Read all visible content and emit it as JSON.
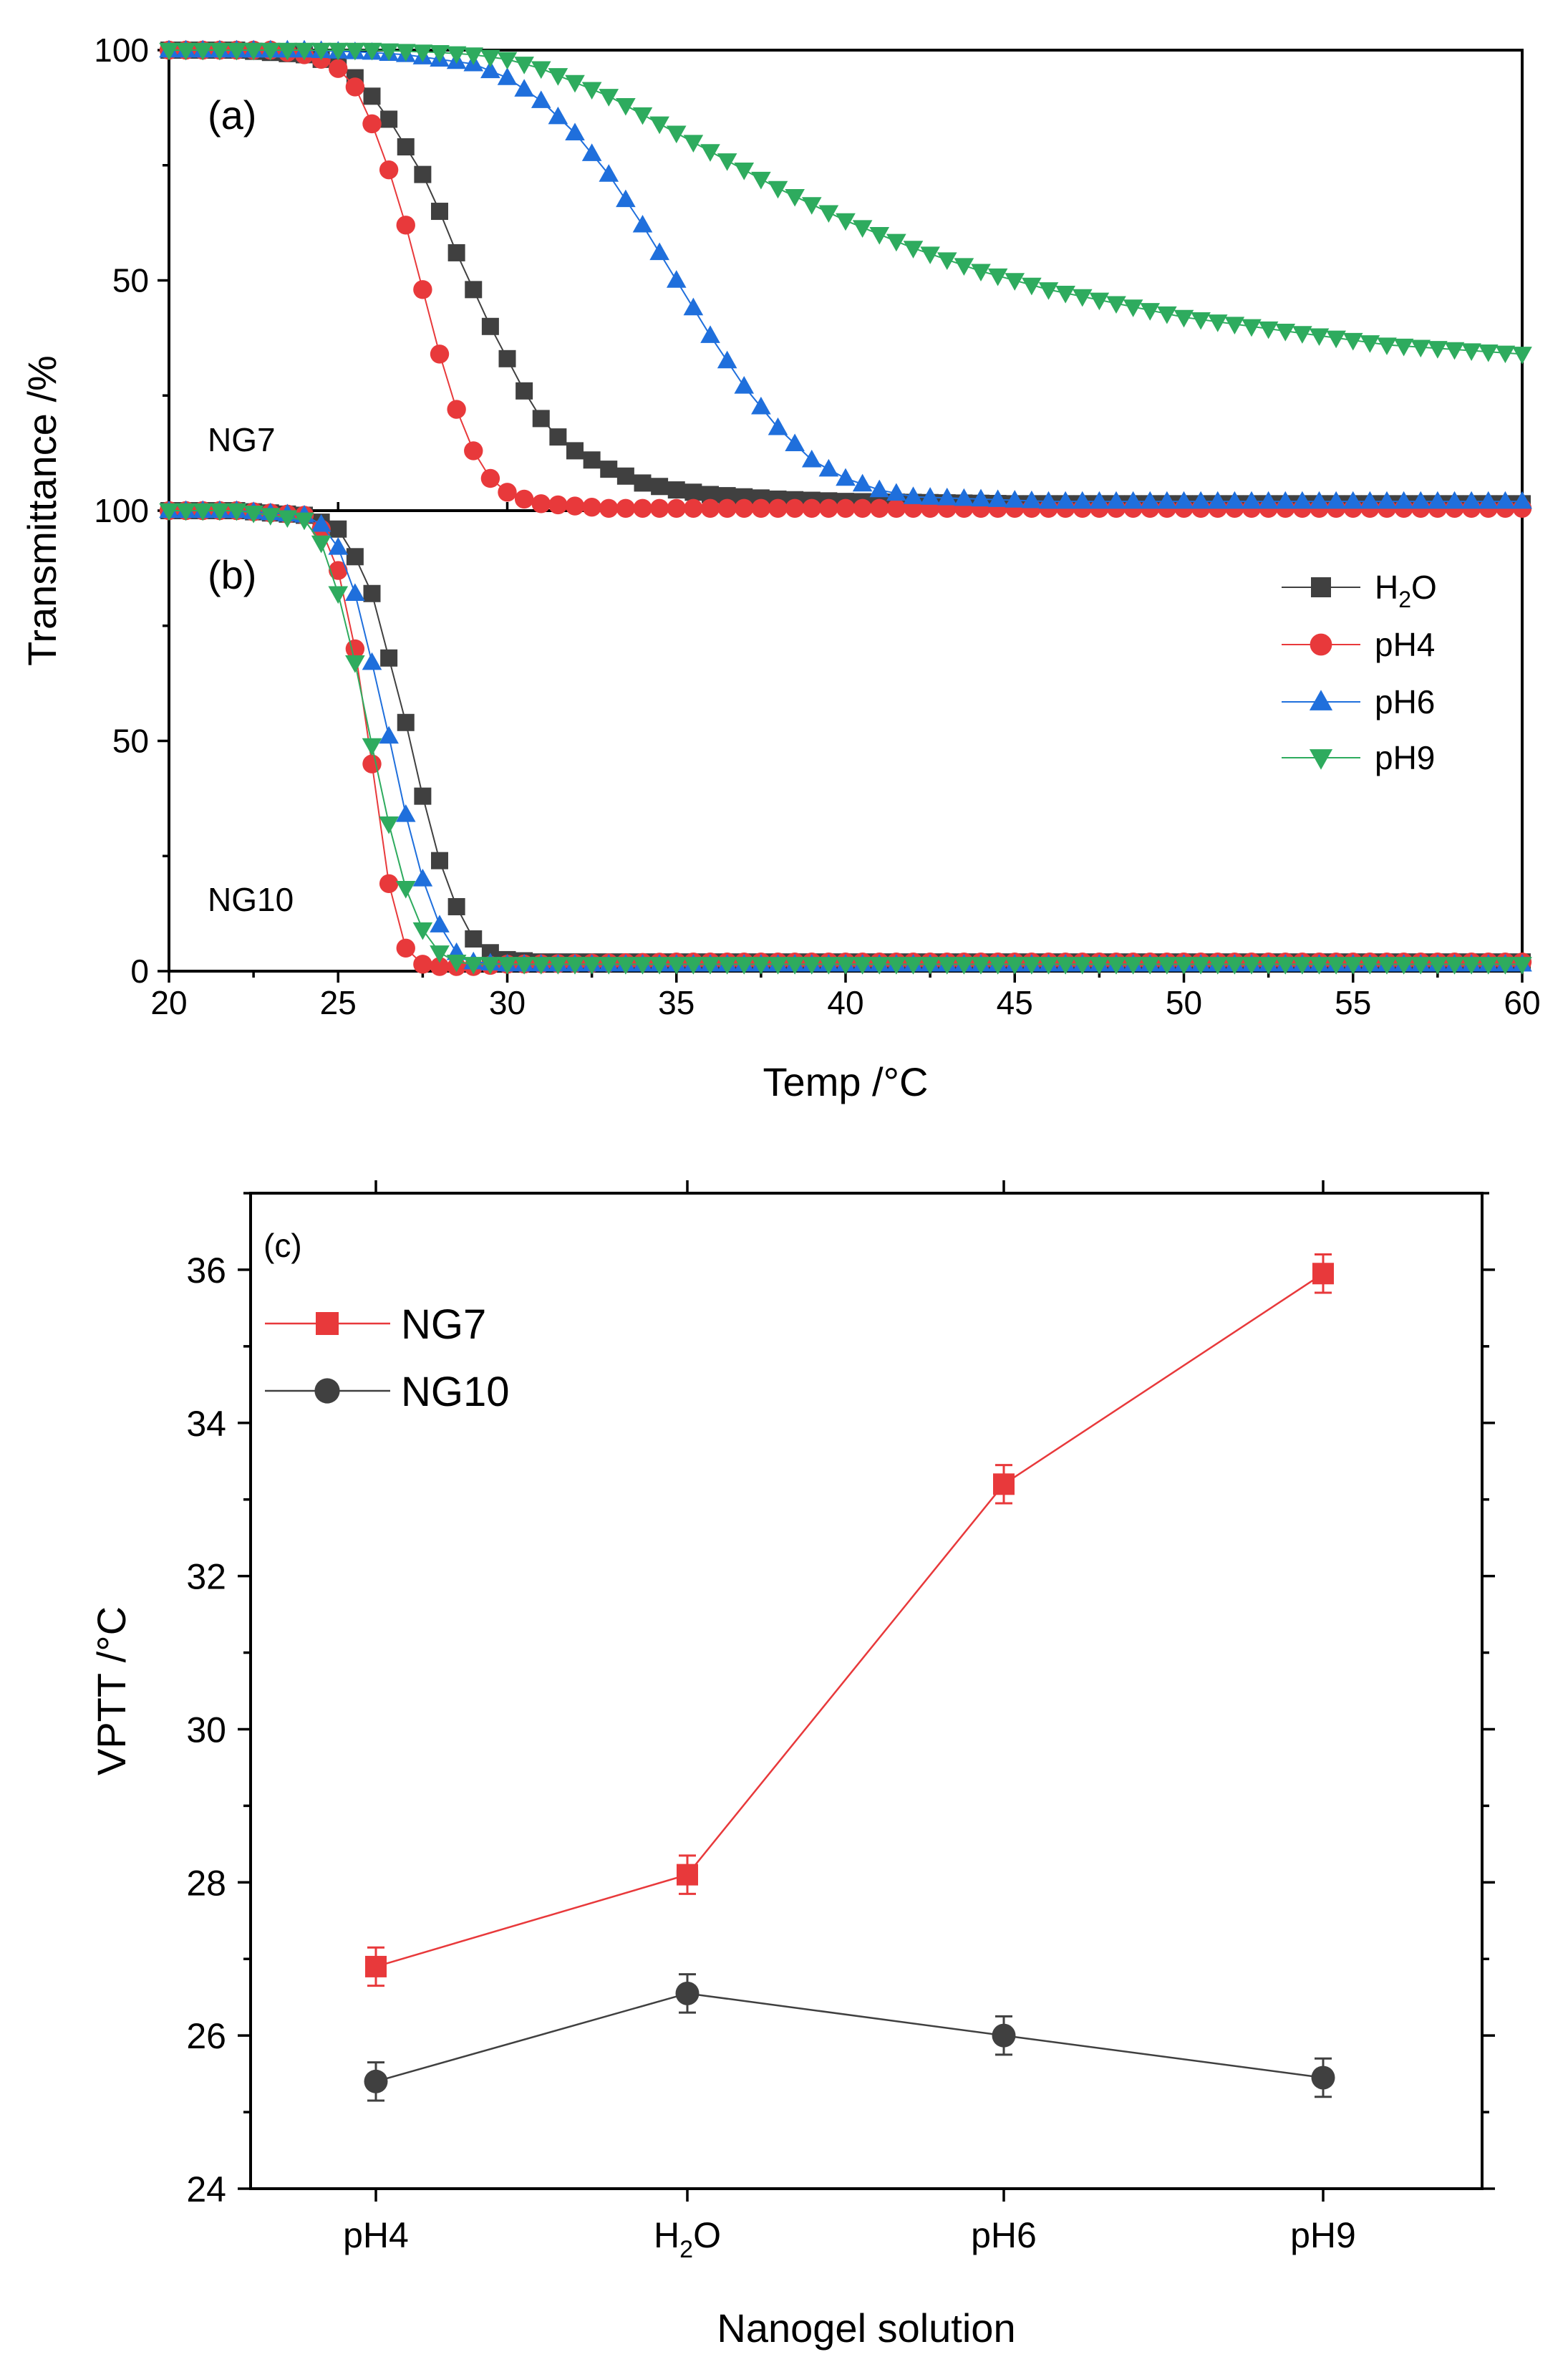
{
  "chart_data": [
    {
      "panel_label": "(a)",
      "type": "scatter",
      "sample": "NG7",
      "ylabel": "Transmittance /%",
      "xlim": [
        20,
        60
      ],
      "ylim": [
        0,
        100
      ],
      "yticks": [
        "0",
        "50",
        "100"
      ],
      "series": [
        {
          "name": "H2O",
          "color": "#404040",
          "marker": "square",
          "x": [
            20,
            21,
            22,
            23,
            24,
            25,
            25.5,
            26,
            26.5,
            27,
            27.5,
            28,
            28.5,
            29,
            29.5,
            30,
            30.5,
            31,
            31.5,
            32,
            33,
            34,
            35,
            36,
            38,
            40,
            45,
            50,
            55,
            60
          ],
          "y": [
            100,
            100,
            100,
            99.5,
            99,
            97,
            94,
            90,
            85,
            79,
            73,
            65,
            56,
            48,
            40,
            33,
            26,
            20,
            16,
            13,
            9,
            6,
            4.5,
            3.5,
            2.5,
            2,
            1.5,
            1.5,
            1.5,
            1.5
          ]
        },
        {
          "name": "pH4",
          "color": "#e8393b",
          "marker": "circle",
          "x": [
            20,
            21,
            22,
            23,
            24,
            24.5,
            25,
            25.5,
            26,
            26.5,
            27,
            27.5,
            28,
            28.5,
            29,
            29.5,
            30,
            30.5,
            31,
            32,
            33,
            35,
            40,
            45,
            50,
            55,
            60
          ],
          "y": [
            100,
            100,
            100,
            100,
            99,
            98,
            96,
            92,
            84,
            74,
            62,
            48,
            34,
            22,
            13,
            7,
            4,
            2.5,
            1.5,
            1,
            0.5,
            0.5,
            0.5,
            0.5,
            0.5,
            0.5,
            0.5
          ]
        },
        {
          "name": "pH6",
          "color": "#1f6fdc",
          "marker": "triangle-up",
          "x": [
            20,
            22,
            24,
            26,
            27,
            28,
            29,
            30,
            31,
            32,
            33,
            34,
            35,
            36,
            37,
            38,
            39,
            40,
            41,
            42,
            44,
            46,
            50,
            55,
            60
          ],
          "y": [
            100,
            100,
            100,
            99.5,
            99,
            98,
            97,
            94,
            89,
            82,
            73,
            62,
            50,
            38,
            27,
            18,
            11,
            7,
            4.5,
            3,
            2.5,
            2,
            2,
            2,
            2
          ],
          "x_note": ""
        },
        {
          "name": "pH9",
          "color": "#2eab5e",
          "marker": "triangle-down",
          "x": [
            20,
            22,
            24,
            26,
            28,
            29,
            30,
            31,
            32,
            33,
            34,
            35,
            36,
            38,
            40,
            42,
            44,
            46,
            48,
            50,
            52,
            54,
            56,
            58,
            60
          ],
          "y": [
            100,
            100,
            100,
            100,
            99.5,
            99,
            98,
            96,
            93,
            90,
            86,
            82,
            78,
            70,
            63,
            57,
            52,
            48,
            45,
            42,
            40,
            38,
            36,
            35,
            34
          ]
        }
      ],
      "annotation": "NG7"
    },
    {
      "panel_label": "(b)",
      "type": "scatter",
      "sample": "NG10",
      "xlabel": "Temp /°C",
      "xlim": [
        20,
        60
      ],
      "ylim": [
        0,
        100
      ],
      "xticks": [
        "20",
        "25",
        "30",
        "35",
        "40",
        "45",
        "50",
        "55",
        "60"
      ],
      "yticks": [
        "0",
        "50",
        "100"
      ],
      "series": [
        {
          "name": "H2O",
          "color": "#404040",
          "marker": "square",
          "x": [
            20,
            22,
            24,
            25,
            25.5,
            26,
            26.5,
            27,
            27.5,
            28,
            28.5,
            29,
            29.5,
            30,
            31,
            32,
            35,
            40,
            45,
            50,
            55,
            60
          ],
          "y": [
            100,
            100,
            99,
            96,
            90,
            82,
            68,
            54,
            38,
            24,
            14,
            7,
            4,
            2.5,
            2,
            2,
            2,
            2,
            2,
            2,
            2,
            2
          ]
        },
        {
          "name": "pH4",
          "color": "#e8393b",
          "marker": "circle",
          "x": [
            20,
            22,
            24,
            24.5,
            25,
            25.5,
            26,
            26.5,
            27,
            27.5,
            28,
            29,
            30,
            35,
            40,
            45,
            50,
            55,
            60
          ],
          "y": [
            100,
            100,
            99,
            96,
            87,
            70,
            45,
            19,
            5,
            1.5,
            1,
            1,
            1.5,
            2,
            2,
            2,
            2,
            2,
            2
          ]
        },
        {
          "name": "pH6",
          "color": "#1f6fdc",
          "marker": "triangle-up",
          "x": [
            20,
            22,
            24,
            24.5,
            25,
            25.5,
            26,
            26.5,
            27,
            27.5,
            28,
            28.5,
            29,
            30,
            35,
            40,
            45,
            50,
            55,
            60
          ],
          "y": [
            100,
            100,
            99,
            97,
            92,
            82,
            67,
            51,
            34,
            20,
            10,
            4,
            2,
            1.5,
            1.5,
            1.5,
            1.5,
            1.5,
            1.5,
            1.5
          ]
        },
        {
          "name": "pH9",
          "color": "#2eab5e",
          "marker": "triangle-down",
          "x": [
            20,
            22,
            24,
            24.5,
            25,
            25.5,
            26,
            26.5,
            27,
            27.5,
            28,
            28.5,
            29,
            30,
            35,
            40,
            45,
            50,
            55,
            60
          ],
          "y": [
            100,
            100,
            98,
            93,
            82,
            67,
            49,
            32,
            18,
            9,
            4,
            2,
            1.5,
            1.5,
            1.5,
            1.5,
            1.5,
            1.5,
            1.5,
            1.5
          ]
        }
      ],
      "annotation": "NG10",
      "legend": {
        "position": "right",
        "entries": [
          {
            "label_main": "H",
            "label_sub": "2",
            "label_tail": "O"
          },
          {
            "label_main": "pH4",
            "label_sub": "",
            "label_tail": ""
          },
          {
            "label_main": "pH6",
            "label_sub": "",
            "label_tail": ""
          },
          {
            "label_main": "pH9",
            "label_sub": "",
            "label_tail": ""
          }
        ]
      }
    },
    {
      "panel_label": "(c)",
      "type": "line",
      "xlabel": "Nanogel solution",
      "ylabel": "VPTT /°C",
      "categories": [
        "pH4",
        "H2O",
        "pH6",
        "pH9"
      ],
      "ylim": [
        24,
        37
      ],
      "yticks": [
        "24",
        "26",
        "28",
        "30",
        "32",
        "34",
        "36"
      ],
      "series": [
        {
          "name": "NG7",
          "color": "#e8393b",
          "marker": "square",
          "values": [
            26.9,
            28.1,
            33.2,
            35.95
          ],
          "errors": [
            0.25,
            0.25,
            0.25,
            0.25
          ]
        },
        {
          "name": "NG10",
          "color": "#404040",
          "marker": "circle",
          "values": [
            25.4,
            26.55,
            26.0,
            25.45
          ],
          "errors": [
            0.25,
            0.25,
            0.25,
            0.25
          ]
        }
      ],
      "legend": {
        "position": "top-left"
      }
    }
  ]
}
